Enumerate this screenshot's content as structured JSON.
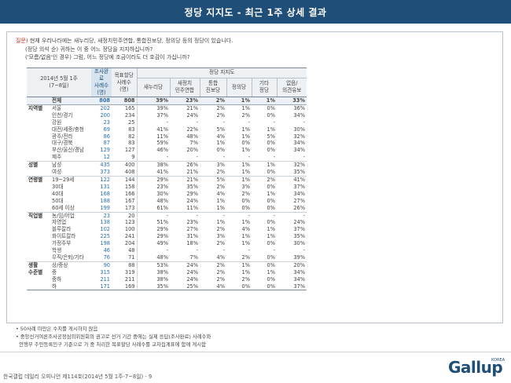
{
  "header": {
    "title": "정당 지지도 - 최근 1주 상세 결과"
  },
  "question": {
    "tag": "질문)",
    "line1": " 현재 우리나라에는 새누리당, 새정치민주연합, 통합진보당, 정의당 등의 정당이 있습니다.",
    "line2": "(정당 의석 순) 귀하는 이 중 어느 정당을 지지하십니까?",
    "line3": "('모름/없음'인 경우) 그럼, 어느 정당에 조금이라도 더 호감이 가십니까?"
  },
  "table": {
    "corner": "2014년 5월 1주\n(7~8일)",
    "col_support": "조사완료\n사례수\n(명)",
    "col_target": "목표할당\n사례수\n(명)",
    "party_group": "정당 지지도",
    "parties": [
      "새누리당",
      "새정치\n민주연합",
      "통합\n진보당",
      "정의당",
      "기타\n정당",
      "없음/\n의견유보"
    ],
    "rows": [
      {
        "g": "",
        "s": "전체",
        "c1": "808",
        "c2": "808",
        "v": [
          "39%",
          "23%",
          "2%",
          "1%",
          "1%",
          "33%"
        ],
        "cls": "total"
      },
      {
        "g": "지역별",
        "s": "서울",
        "c1": "202",
        "c2": "165",
        "v": [
          "39%",
          "21%",
          "2%",
          "1%",
          "0%",
          "36%"
        ],
        "cls": ""
      },
      {
        "g": "",
        "s": "인천/경기",
        "c1": "200",
        "c2": "234",
        "v": [
          "37%",
          "24%",
          "2%",
          "2%",
          "0%",
          "34%"
        ],
        "cls": ""
      },
      {
        "g": "",
        "s": "강원",
        "c1": "23",
        "c2": "25",
        "v": [
          "-",
          "-",
          "-",
          "-",
          "-",
          "-"
        ],
        "cls": ""
      },
      {
        "g": "",
        "s": "대전/세종/충청",
        "c1": "69",
        "c2": "83",
        "v": [
          "41%",
          "22%",
          "5%",
          "1%",
          "1%",
          "30%"
        ],
        "cls": ""
      },
      {
        "g": "",
        "s": "광주/전라",
        "c1": "86",
        "c2": "82",
        "v": [
          "11%",
          "48%",
          "4%",
          "1%",
          "5%",
          "32%"
        ],
        "cls": ""
      },
      {
        "g": "",
        "s": "대구/경북",
        "c1": "87",
        "c2": "83",
        "v": [
          "59%",
          "7%",
          "1%",
          "0%",
          "0%",
          "34%"
        ],
        "cls": ""
      },
      {
        "g": "",
        "s": "부산/울산/경남",
        "c1": "129",
        "c2": "127",
        "v": [
          "46%",
          "20%",
          "0%",
          "1%",
          "0%",
          "34%"
        ],
        "cls": ""
      },
      {
        "g": "",
        "s": "제주",
        "c1": "12",
        "c2": "9",
        "v": [
          "-",
          "-",
          "-",
          "-",
          "-",
          "-"
        ],
        "cls": ""
      },
      {
        "g": "성별",
        "s": "남성",
        "c1": "435",
        "c2": "400",
        "v": [
          "38%",
          "26%",
          "3%",
          "1%",
          "1%",
          "32%"
        ],
        "cls": "sep"
      },
      {
        "g": "",
        "s": "여성",
        "c1": "373",
        "c2": "408",
        "v": [
          "41%",
          "21%",
          "2%",
          "1%",
          "0%",
          "35%"
        ],
        "cls": ""
      },
      {
        "g": "연령별",
        "s": "19~29세",
        "c1": "122",
        "c2": "144",
        "v": [
          "29%",
          "21%",
          "5%",
          "1%",
          "2%",
          "41%"
        ],
        "cls": "sep"
      },
      {
        "g": "",
        "s": "30대",
        "c1": "131",
        "c2": "158",
        "v": [
          "23%",
          "35%",
          "2%",
          "3%",
          "0%",
          "37%"
        ],
        "cls": ""
      },
      {
        "g": "",
        "s": "40대",
        "c1": "168",
        "c2": "166",
        "v": [
          "30%",
          "29%",
          "4%",
          "2%",
          "1%",
          "34%"
        ],
        "cls": ""
      },
      {
        "g": "",
        "s": "50대",
        "c1": "188",
        "c2": "167",
        "v": [
          "48%",
          "24%",
          "1%",
          "0%",
          "0%",
          "27%"
        ],
        "cls": ""
      },
      {
        "g": "",
        "s": "60세 이상",
        "c1": "199",
        "c2": "173",
        "v": [
          "61%",
          "11%",
          "1%",
          "0%",
          "0%",
          "26%"
        ],
        "cls": ""
      },
      {
        "g": "직업별",
        "s": "농/임/어업",
        "c1": "23",
        "c2": "20",
        "v": [
          "-",
          "-",
          "-",
          "-",
          "-",
          "-"
        ],
        "cls": "sep"
      },
      {
        "g": "",
        "s": "자영업",
        "c1": "138",
        "c2": "123",
        "v": [
          "51%",
          "23%",
          "1%",
          "1%",
          "0%",
          "24%"
        ],
        "cls": ""
      },
      {
        "g": "",
        "s": "블루칼라",
        "c1": "102",
        "c2": "100",
        "v": [
          "29%",
          "27%",
          "2%",
          "4%",
          "1%",
          "37%"
        ],
        "cls": ""
      },
      {
        "g": "",
        "s": "화이트칼라",
        "c1": "225",
        "c2": "241",
        "v": [
          "29%",
          "31%",
          "3%",
          "1%",
          "1%",
          "35%"
        ],
        "cls": ""
      },
      {
        "g": "",
        "s": "가정주부",
        "c1": "198",
        "c2": "204",
        "v": [
          "49%",
          "18%",
          "2%",
          "1%",
          "0%",
          "30%"
        ],
        "cls": ""
      },
      {
        "g": "",
        "s": "학생",
        "c1": "46",
        "c2": "48",
        "v": [
          "-",
          "-",
          "-",
          "-",
          "-",
          "-"
        ],
        "cls": ""
      },
      {
        "g": "",
        "s": "무직/은퇴/기타",
        "c1": "76",
        "c2": "71",
        "v": [
          "48%",
          "7%",
          "4%",
          "2%",
          "0%",
          "39%"
        ],
        "cls": ""
      },
      {
        "g": "생활",
        "s": "상/중상",
        "c1": "90",
        "c2": "88",
        "v": [
          "53%",
          "24%",
          "2%",
          "1%",
          "0%",
          "20%"
        ],
        "cls": "sep"
      },
      {
        "g": "수준별",
        "s": "중",
        "c1": "315",
        "c2": "319",
        "v": [
          "38%",
          "24%",
          "2%",
          "1%",
          "1%",
          "34%"
        ],
        "cls": ""
      },
      {
        "g": "",
        "s": "중하",
        "c1": "211",
        "c2": "211",
        "v": [
          "38%",
          "24%",
          "2%",
          "2%",
          "0%",
          "34%"
        ],
        "cls": ""
      },
      {
        "g": "",
        "s": "하",
        "c1": "171",
        "c2": "169",
        "v": [
          "35%",
          "25%",
          "4%",
          "0%",
          "0%",
          "37%"
        ],
        "cls": "lastrow"
      }
    ]
  },
  "notes": {
    "n1": "• 50사례 미만은 수치를 게시하지 않음",
    "n2": "• 중앙선거여론조사공정심의위원회의 권고로 선거 기간 중에는 실제 응답(조사완료) 사례수와",
    "n3": "  안행부 주민등록인구 기준으로 가 중 처리한 목표할당 사례수를 교차집계표에 함께 게시함"
  },
  "footer": {
    "source": "한국갤럽 데일리 오피니언 제114호(2014년 5월 1주-7~8일) - 9"
  },
  "logo": {
    "word": "Gallup",
    "sub": "KOREA"
  },
  "colors": {
    "banner": "#1f4e79",
    "support_header": "#d7e3ee",
    "support_count": "#2a6fb0"
  }
}
